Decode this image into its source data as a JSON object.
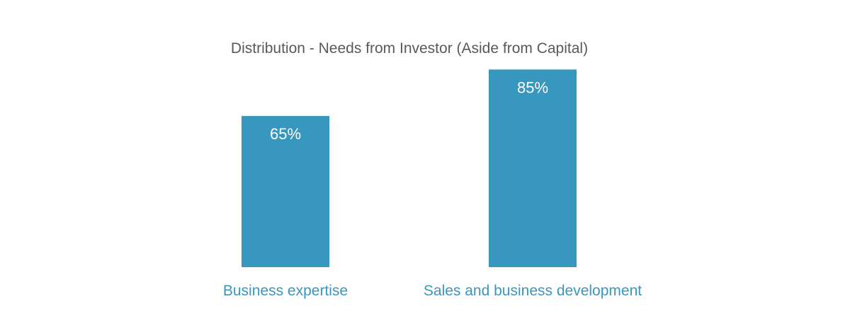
{
  "chart_data": {
    "type": "bar",
    "title": "Distribution - Needs from Investor (Aside from Capital)",
    "categories": [
      "Business expertise",
      "Sales and business development"
    ],
    "values": [
      65,
      85
    ],
    "value_labels": [
      "65%",
      "85%"
    ],
    "value_unit": "%",
    "ylim": [
      0,
      100
    ],
    "grid": false,
    "legend": "none",
    "bar_color": "#3797BE",
    "category_label_color": "#3797BE",
    "value_label_color": "#FFFFFF",
    "title_color": "#595959"
  }
}
